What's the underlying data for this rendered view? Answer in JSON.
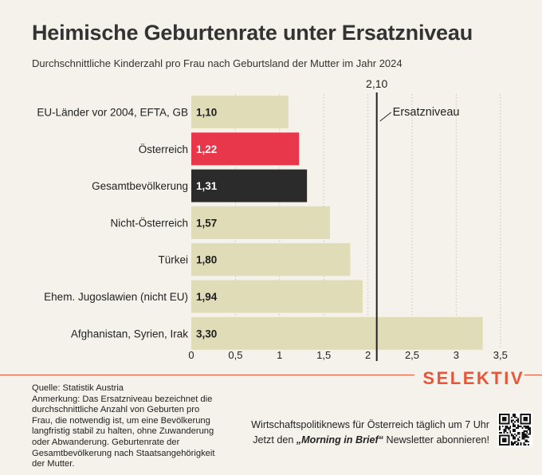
{
  "header": {
    "title": "Heimische Geburtenrate unter Ersatzniveau",
    "subtitle": "Durchschnittliche Kinderzahl pro Frau nach Geburtsland der Mutter im Jahr 2024"
  },
  "chart_data": {
    "type": "bar",
    "orientation": "horizontal",
    "categories": [
      "EU-Länder vor 2004, EFTA, GB",
      "Österreich",
      "Gesamtbevölkerung",
      "Nicht-Österreich",
      "Türkei",
      "Ehem. Jugoslawien (nicht EU)",
      "Afghanistan, Syrien, Irak"
    ],
    "values": [
      1.1,
      1.22,
      1.31,
      1.57,
      1.8,
      1.94,
      3.3
    ],
    "value_labels": [
      "1,10",
      "1,22",
      "1,31",
      "1,57",
      "1,80",
      "1,94",
      "3,30"
    ],
    "bar_colors": [
      "#e0dcb8",
      "#e8374a",
      "#2b2b2b",
      "#e0dcb8",
      "#e0dcb8",
      "#e0dcb8",
      "#e0dcb8"
    ],
    "label_colors": [
      "#1e1e1e",
      "#ffffff",
      "#ffffff",
      "#1e1e1e",
      "#1e1e1e",
      "#1e1e1e",
      "#1e1e1e"
    ],
    "xlim": [
      0,
      3.5
    ],
    "xticks": [
      0,
      0.5,
      1,
      1.5,
      2,
      2.5,
      3,
      3.5
    ],
    "xtick_labels": [
      "0",
      "0,5",
      "1",
      "1,5",
      "2",
      "2,5",
      "3",
      "3,5"
    ],
    "reference_line": {
      "value": 2.1,
      "value_label": "2,10",
      "label": "Ersatzniveau"
    },
    "grid": "vertical dotted"
  },
  "footer": {
    "brand": "SELEKTIV",
    "source": "Quelle: Statistik Austria",
    "note": "Anmerkung: Das Ersatzniveau bezeichnet die durchschnittliche Anzahl von Geburten pro Frau, die notwendig ist, um eine Bevölkerung langfristig stabil zu halten, ohne Zuwanderung oder Abwanderung. Geburtenrate der Gesamtbevölkerung nach Staatsangehörigkeit der Mutter.",
    "cta_line1": "Wirtschaftspolitiknews für Österreich täglich um 7 Uhr",
    "cta_line2_prefix": "Jetzt den ",
    "cta_line2_bold": "„Morning in Brief“",
    "cta_line2_suffix": " Newsletter abonnieren!"
  },
  "colors": {
    "background": "#f4f2ea",
    "accent": "#e8563a",
    "grid": "#c9c5b3"
  }
}
